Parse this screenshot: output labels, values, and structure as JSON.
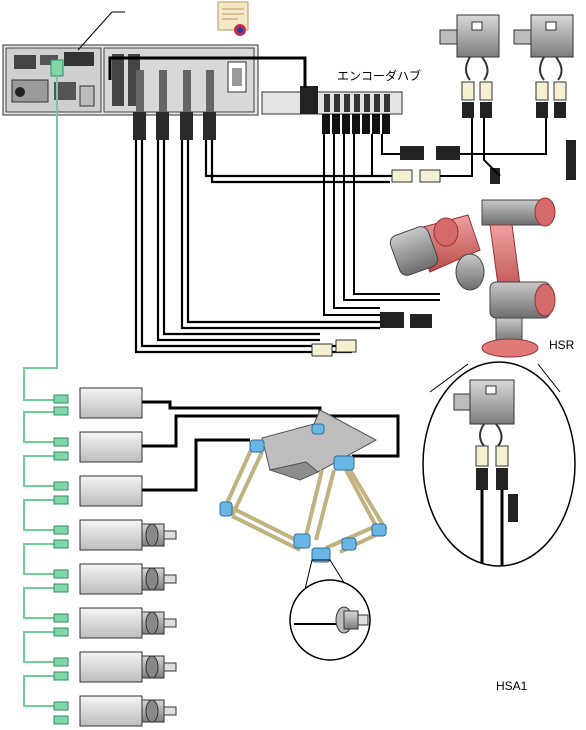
{
  "labels": {
    "encoder_hub": "エンコーダハブ",
    "robot_hsr": "HSR",
    "robot_hsa1": "HSA1"
  },
  "colors": {
    "ethercat_cable": "#6fcf97",
    "connector_green": "#7fd6a8",
    "robot_arm_red": "#e07a7a",
    "robot_arm_gray": "#8a8a8a",
    "joint_blue": "#6ab7e6",
    "cable_black": "#000000"
  },
  "icons": {
    "certificate": "certificate-icon"
  }
}
